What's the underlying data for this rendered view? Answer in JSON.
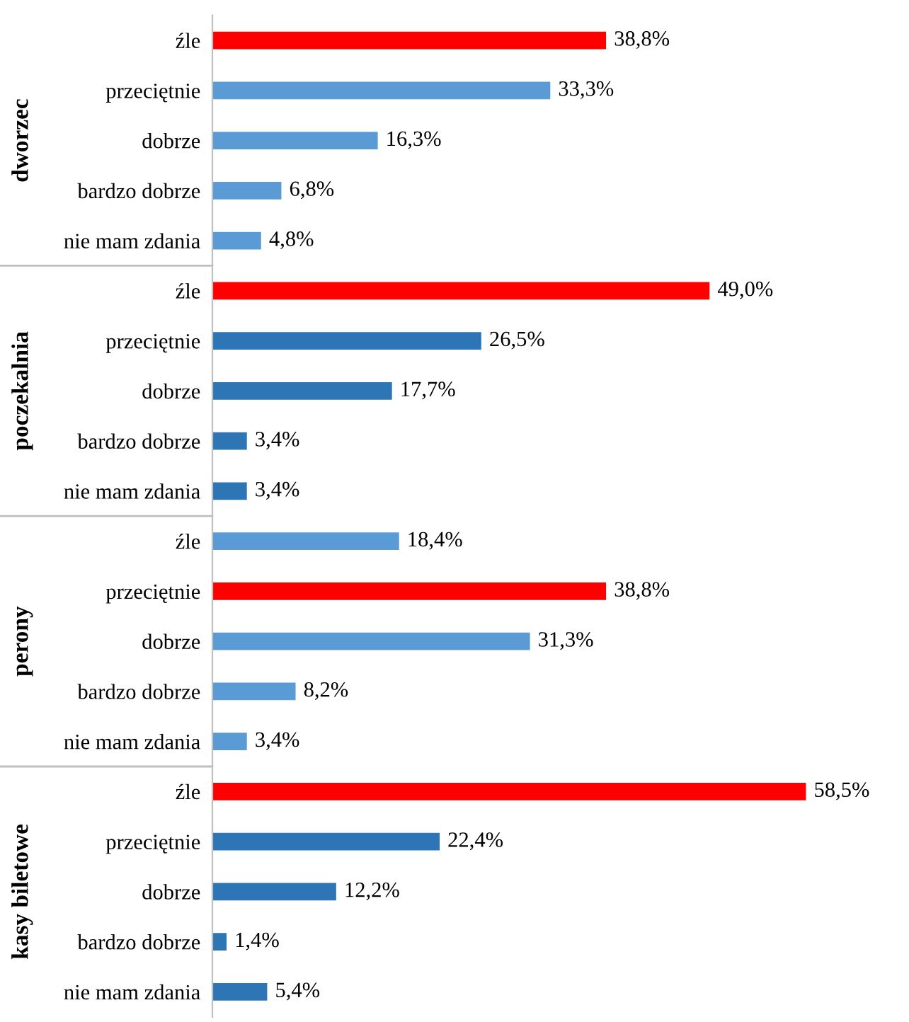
{
  "chart_data": [
    {
      "type": "bar",
      "orientation": "horizontal",
      "ylabel": "dworzec",
      "categories": [
        "źle",
        "przeciętnie",
        "dobrze",
        "bardzo dobrze",
        "nie mam zdania"
      ],
      "values": [
        38.8,
        33.3,
        16.3,
        6.8,
        4.8
      ],
      "colors": [
        "#ff0000",
        "#5b9bd5",
        "#5b9bd5",
        "#5b9bd5",
        "#5b9bd5"
      ],
      "value_labels": [
        "38,8%",
        "33,3%",
        "16,3%",
        "6,8%",
        "4,8%"
      ]
    },
    {
      "type": "bar",
      "orientation": "horizontal",
      "ylabel": "poczekalnia",
      "categories": [
        "źle",
        "przeciętnie",
        "dobrze",
        "bardzo dobrze",
        "nie mam zdania"
      ],
      "values": [
        49.0,
        26.5,
        17.7,
        3.4,
        3.4
      ],
      "colors": [
        "#ff0000",
        "#2e75b6",
        "#2e75b6",
        "#2e75b6",
        "#2e75b6"
      ],
      "value_labels": [
        "49,0%",
        "26,5%",
        "17,7%",
        "3,4%",
        "3,4%"
      ]
    },
    {
      "type": "bar",
      "orientation": "horizontal",
      "ylabel": "perony",
      "categories": [
        "źle",
        "przeciętnie",
        "dobrze",
        "bardzo dobrze",
        "nie mam zdania"
      ],
      "values": [
        18.4,
        38.8,
        31.3,
        8.2,
        3.4
      ],
      "colors": [
        "#5b9bd5",
        "#ff0000",
        "#5b9bd5",
        "#5b9bd5",
        "#5b9bd5"
      ],
      "value_labels": [
        "18,4%",
        "38,8%",
        "31,3%",
        "8,2%",
        "3,4%"
      ]
    },
    {
      "type": "bar",
      "orientation": "horizontal",
      "ylabel": "kasy biletowe",
      "categories": [
        "źle",
        "przeciętnie",
        "dobrze",
        "bardzo dobrze",
        "nie mam zdania"
      ],
      "values": [
        58.5,
        22.4,
        12.2,
        1.4,
        5.4
      ],
      "colors": [
        "#ff0000",
        "#2e75b6",
        "#2e75b6",
        "#2e75b6",
        "#2e75b6"
      ],
      "value_labels": [
        "58,5%",
        "22,4%",
        "12,2%",
        "1,4%",
        "5,4%"
      ]
    }
  ]
}
